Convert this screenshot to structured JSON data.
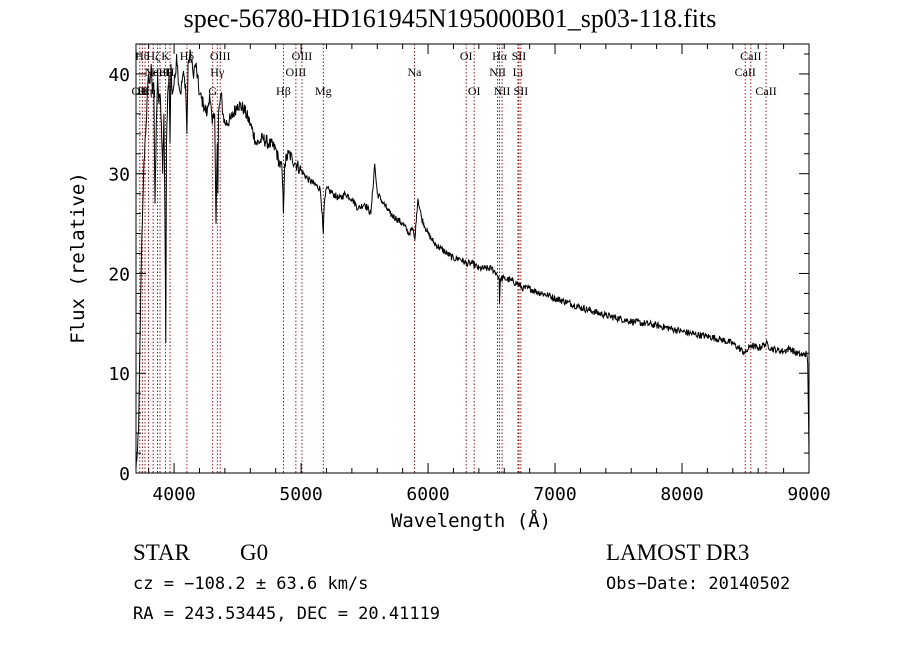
{
  "chart_data": {
    "type": "line",
    "title": "spec-56780-HD161945N195000B01_sp03-118.fits",
    "xlabel": "Wavelength (Å)",
    "ylabel": "Flux (relative)",
    "xlim": [
      3700,
      9000
    ],
    "ylim": [
      0,
      43
    ],
    "x_ticks": [
      4000,
      5000,
      6000,
      7000,
      8000,
      9000
    ],
    "x_tick_labels": [
      "4000",
      "5000",
      "6000",
      "7000",
      "8000",
      "9000"
    ],
    "y_ticks": [
      0,
      10,
      20,
      30,
      40
    ],
    "y_tick_labels": [
      "0",
      "10",
      "20",
      "30",
      "40"
    ],
    "series": [
      {
        "name": "spectrum",
        "x": [
          3700,
          3710,
          3720,
          3730,
          3740,
          3750,
          3760,
          3770,
          3780,
          3790,
          3800,
          3810,
          3820,
          3830,
          3840,
          3850,
          3860,
          3870,
          3880,
          3890,
          3900,
          3910,
          3920,
          3930,
          3935,
          3940,
          3950,
          3960,
          3968,
          3975,
          3985,
          4000,
          4010,
          4020,
          4030,
          4050,
          4070,
          4090,
          4101,
          4110,
          4130,
          4150,
          4170,
          4200,
          4230,
          4260,
          4280,
          4300,
          4320,
          4330,
          4340,
          4345,
          4350,
          4360,
          4370,
          4385,
          4400,
          4450,
          4500,
          4550,
          4600,
          4650,
          4700,
          4750,
          4800,
          4830,
          4850,
          4861,
          4870,
          4900,
          4930,
          4960,
          4990,
          5050,
          5100,
          5150,
          5167,
          5175,
          5183,
          5200,
          5250,
          5300,
          5350,
          5400,
          5450,
          5500,
          5550,
          5580,
          5600,
          5650,
          5700,
          5750,
          5800,
          5850,
          5880,
          5893,
          5900,
          5910,
          5920,
          5950,
          6000,
          6050,
          6100,
          6150,
          6200,
          6250,
          6300,
          6350,
          6400,
          6450,
          6500,
          6540,
          6560,
          6563,
          6570,
          6600,
          6650,
          6700,
          6750,
          6800,
          6850,
          6900,
          6950,
          7000,
          7100,
          7200,
          7300,
          7400,
          7500,
          7600,
          7700,
          7800,
          7900,
          8000,
          8100,
          8200,
          8300,
          8400,
          8498,
          8542,
          8600,
          8662,
          8700,
          8750,
          8800,
          8850,
          8900,
          8950,
          8980,
          8990,
          9000
        ],
        "y": [
          0.5,
          2,
          4,
          12,
          20,
          25,
          30,
          33,
          35,
          38,
          40,
          39,
          41,
          38,
          39,
          27,
          35,
          40,
          37,
          38,
          35,
          30,
          36,
          22,
          13,
          33,
          38,
          40,
          33,
          41,
          38,
          39,
          40,
          42,
          40,
          38,
          40,
          39,
          34,
          41,
          42,
          40,
          41,
          38,
          37,
          36,
          38,
          35,
          36,
          25,
          33,
          28,
          36,
          37,
          38,
          36,
          35,
          35.5,
          37,
          36.5,
          35,
          33,
          33.5,
          33,
          32.5,
          31,
          30.5,
          26,
          31,
          32,
          31.5,
          31,
          30.5,
          29.5,
          29,
          28.5,
          26,
          24,
          27,
          28.5,
          28,
          27.5,
          28,
          27.5,
          26.5,
          27,
          26,
          31,
          28,
          27,
          26,
          25.5,
          25,
          24,
          24.5,
          23.5,
          24,
          26,
          27.5,
          25.5,
          24,
          23,
          22.5,
          22,
          21.5,
          21.5,
          21,
          21,
          20.5,
          20.5,
          20.5,
          20,
          19.5,
          17,
          19.5,
          19.5,
          19.3,
          19,
          18.5,
          18.5,
          18.2,
          18,
          17.8,
          17.5,
          17.1,
          16.6,
          16.2,
          15.8,
          15.5,
          15.2,
          15,
          14.8,
          14.5,
          14.2,
          13.9,
          13.7,
          13.4,
          13,
          12,
          12.8,
          12.5,
          13,
          12.5,
          12.3,
          12.2,
          12.5,
          12,
          11.8,
          12,
          11,
          1.5
        ]
      }
    ],
    "line_markers": [
      {
        "x": 3730,
        "label": "OII",
        "row": 3
      },
      {
        "x": 3750,
        "label": "Hθ",
        "row": 1
      },
      {
        "x": 3771,
        "label": "Hη",
        "row": 3
      },
      {
        "x": 3798,
        "label": "Hη",
        "row": 3
      },
      {
        "x": 3835,
        "label": "Hζ",
        "row": 1
      },
      {
        "x": 3869,
        "label": "NeIII",
        "row": 2
      },
      {
        "x": 3889,
        "label": "HeI",
        "row": 2
      },
      {
        "x": 3933,
        "label": "K",
        "row": 1
      },
      {
        "x": 3968,
        "label": "H",
        "row": 2
      },
      {
        "x": 4101,
        "label": "Hδ",
        "row": 1
      },
      {
        "x": 4304,
        "label": "G",
        "row": 3
      },
      {
        "x": 4340,
        "label": "Hγ",
        "row": 2
      },
      {
        "x": 4363,
        "label": "OIII",
        "row": 1
      },
      {
        "x": 4861,
        "label": "Hβ",
        "row": 3
      },
      {
        "x": 4959,
        "label": "OIII",
        "row": 2
      },
      {
        "x": 5007,
        "label": "OIII",
        "row": 1
      },
      {
        "x": 5175,
        "label": "Mg",
        "row": 3
      },
      {
        "x": 5893,
        "label": "Na",
        "row": 2
      },
      {
        "x": 6300,
        "label": "OI",
        "row": 1
      },
      {
        "x": 6363,
        "label": "OI",
        "row": 3
      },
      {
        "x": 6548,
        "label": "NII",
        "row": 2
      },
      {
        "x": 6563,
        "label": "Hα",
        "row": 1
      },
      {
        "x": 6583,
        "label": "NII",
        "row": 3
      },
      {
        "x": 6708,
        "label": "Li",
        "row": 2
      },
      {
        "x": 6716,
        "label": "SII",
        "row": 1
      },
      {
        "x": 6731,
        "label": "SII",
        "row": 3
      },
      {
        "x": 8498,
        "label": "CaII",
        "row": 2
      },
      {
        "x": 8542,
        "label": "CaII",
        "row": 1
      },
      {
        "x": 8662,
        "label": "CaII",
        "row": 3
      }
    ]
  },
  "footer": {
    "object_class": "STAR",
    "subclass": "G0",
    "survey": "LAMOST DR3",
    "cz": "cz = −108.2 ± 63.6 km/s",
    "obs_date": "Obs−Date: 20140502",
    "radec": "RA = 243.53445, DEC =  20.41119"
  },
  "colors": {
    "spectrum": "#000000",
    "line_marker": "#8b0000",
    "axes": "#000000"
  }
}
